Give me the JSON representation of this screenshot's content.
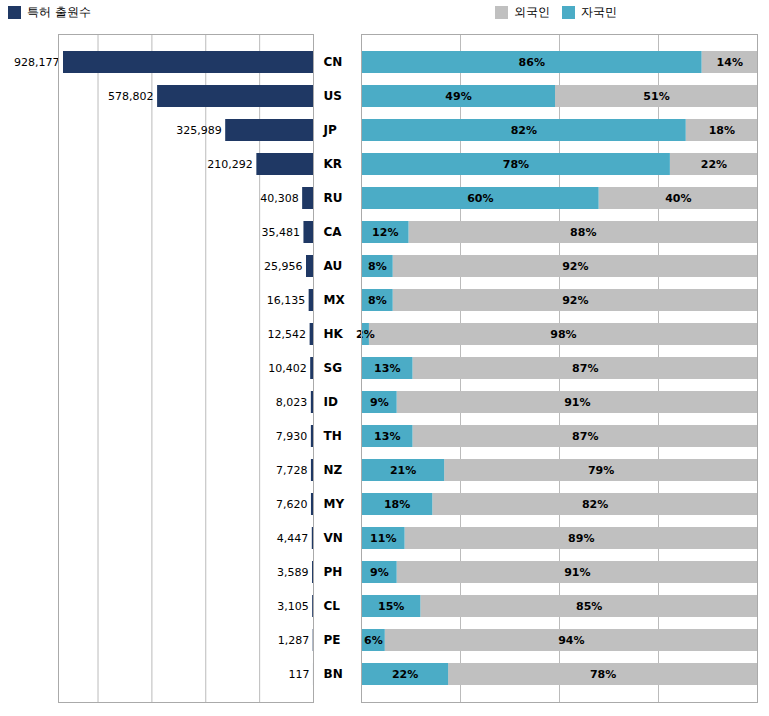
{
  "chart_data": [
    {
      "type": "bar",
      "orientation": "horizontal",
      "categories": [
        "CN",
        "US",
        "JP",
        "KR",
        "RU",
        "CA",
        "AU",
        "MX",
        "HK",
        "SG",
        "ID",
        "TH",
        "NZ",
        "MY",
        "VN",
        "PH",
        "CL",
        "PE",
        "BN"
      ],
      "series": [
        {
          "name": "특허 출원수",
          "color": "#1f3864",
          "values": [
            928177,
            578802,
            325989,
            210292,
            40308,
            35481,
            25956,
            16135,
            12542,
            10402,
            8023,
            7930,
            7728,
            7620,
            4447,
            3589,
            3105,
            1287,
            117
          ],
          "value_labels": [
            "928,177",
            "578,802",
            "325,989",
            "210,292",
            "40,308",
            "35,481",
            "25,956",
            "16,135",
            "12,542",
            "10,402",
            "8,023",
            "7,930",
            "7,728",
            "7,620",
            "4,447",
            "3,589",
            "3,105",
            "1,287",
            "117"
          ]
        }
      ],
      "xlim": [
        946740.54,
        0
      ],
      "xticks": [
        0,
        200000,
        400000,
        600000,
        800000
      ],
      "grid": true,
      "tick_labels": "y",
      "data_labels": true,
      "legend": "upper left"
    },
    {
      "type": "bar",
      "orientation": "horizontal",
      "stacked": true,
      "categories": [
        "CN",
        "US",
        "JP",
        "KR",
        "RU",
        "CA",
        "AU",
        "MX",
        "HK",
        "SG",
        "ID",
        "TH",
        "NZ",
        "MY",
        "VN",
        "PH",
        "CL",
        "PE",
        "BN"
      ],
      "series": [
        {
          "name": "외국인",
          "color": "#c0c0c0",
          "values": [
            14,
            51,
            18,
            22,
            40,
            88,
            92,
            92,
            98,
            87,
            91,
            87,
            79,
            82,
            89,
            91,
            85,
            94,
            78
          ],
          "value_labels": [
            "14%",
            "51%",
            "18%",
            "22%",
            "40%",
            "88%",
            "92%",
            "92%",
            "98%",
            "87%",
            "91%",
            "87%",
            "79%",
            "82%",
            "89%",
            "91%",
            "85%",
            "94%",
            "78%"
          ]
        },
        {
          "name": "자국민",
          "color": "#4bacc6",
          "values": [
            86,
            49,
            82,
            78,
            60,
            12,
            8,
            8,
            2,
            13,
            9,
            13,
            21,
            18,
            11,
            9,
            15,
            6,
            22
          ],
          "value_labels": [
            "86%",
            "49%",
            "82%",
            "78%",
            "60%",
            "12%",
            "8%",
            "8%",
            "2%",
            "13%",
            "9%",
            "13%",
            "21%",
            "18%",
            "11%",
            "9%",
            "15%",
            "6%",
            "22%"
          ]
        }
      ],
      "xlim": [
        0,
        100
      ],
      "xticks": [
        0,
        25,
        50,
        75,
        100
      ],
      "grid": true,
      "tick_labels": false,
      "data_labels": true,
      "legend": "upper center"
    }
  ]
}
